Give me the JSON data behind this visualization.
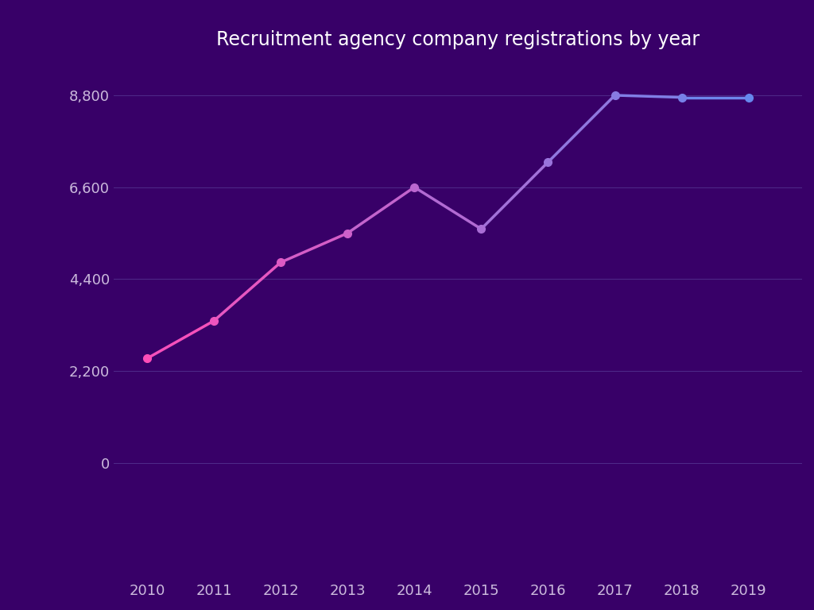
{
  "title": "Recruitment agency company registrations by year",
  "years": [
    2010,
    2011,
    2012,
    2013,
    2014,
    2015,
    2016,
    2017,
    2018,
    2019
  ],
  "values": [
    2500,
    3400,
    4800,
    5500,
    6600,
    5600,
    7200,
    8800,
    8750,
    8750
  ],
  "background_color": "#380068",
  "plot_bg_color": "#380068",
  "title_color": "#ffffff",
  "tick_color": "#ccbbdd",
  "grid_color": "#6655aa",
  "yticks": [
    0,
    2200,
    4400,
    6600,
    8800
  ],
  "ylim": [
    -2800,
    9600
  ],
  "xlim": [
    2009.5,
    2019.8
  ],
  "line_color_start": "#ff4db8",
  "line_color_end": "#6688ee",
  "title_fontsize": 17,
  "tick_fontsize": 13,
  "marker_size": 7,
  "linewidth": 2.5
}
